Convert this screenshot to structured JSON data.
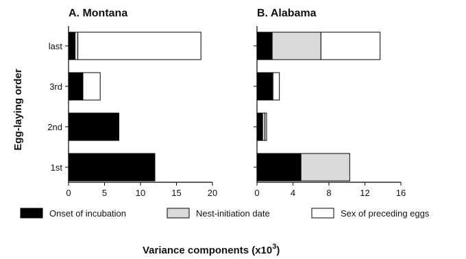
{
  "chart_data": {
    "type": "bar",
    "stacked": true,
    "orientation": "horizontal",
    "ylabel": "Egg-laying order",
    "xlabel": "Variance components (x10",
    "xlabel_superscript": "3",
    "xlabel_suffix": ")",
    "categories": [
      "1st",
      "2nd",
      "3rd",
      "last"
    ],
    "legend": {
      "placement": "bottom",
      "entries": [
        {
          "name": "Onset of incubation",
          "color": "#000000"
        },
        {
          "name": "Nest-initiation date",
          "color": "#d9d9d9"
        },
        {
          "name": "Sex of preceding eggs",
          "color": "#ffffff"
        }
      ]
    },
    "panels": [
      {
        "title": "A. Montana",
        "xlim": [
          0,
          20
        ],
        "xticks": [
          "0",
          "5",
          "10",
          "15",
          "20"
        ],
        "series": [
          {
            "name": "Onset of incubation",
            "values": [
              12.0,
              7.0,
              2.0,
              0.9
            ]
          },
          {
            "name": "Nest-initiation date",
            "values": [
              0.0,
              0.0,
              0.0,
              0.4
            ]
          },
          {
            "name": "Sex of preceding eggs",
            "values": [
              0.0,
              0.0,
              2.4,
              17.1
            ]
          }
        ]
      },
      {
        "title": "B. Alabama",
        "xlim": [
          0,
          18
        ],
        "xticks": [
          "0",
          "4",
          "8",
          "12",
          "16"
        ],
        "series": [
          {
            "name": "Onset of incubation",
            "values": [
              5.5,
              0.7,
              1.9,
              1.9
            ]
          },
          {
            "name": "Nest-initiation date",
            "values": [
              6.1,
              0.3,
              0.1,
              6.1
            ]
          },
          {
            "name": "Sex of preceding eggs",
            "values": [
              0.0,
              0.2,
              0.8,
              7.4
            ]
          }
        ]
      }
    ]
  }
}
